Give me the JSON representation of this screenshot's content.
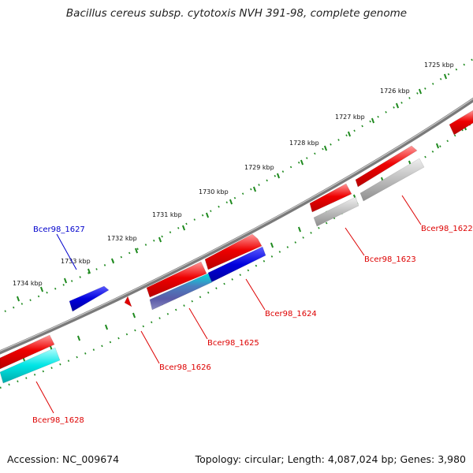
{
  "title": "Bacillus cereus subsp. cytotoxis NVH 391-98, complete genome",
  "footer": {
    "accession": "Accession: NC_009674",
    "info": "Topology: circular; Length: 4,087,024 bp; Genes: 3,980"
  },
  "ticks": [
    "1725 kbp",
    "1726 kbp",
    "1727 kbp",
    "1728 kbp",
    "1729 kbp",
    "1730 kbp",
    "1731 kbp",
    "1732 kbp",
    "1733 kbp",
    "1734 kbp"
  ],
  "genes": [
    {
      "name": "Bcer98_1622",
      "color": "#dd0000"
    },
    {
      "name": "Bcer98_1623",
      "color": "#dd0000"
    },
    {
      "name": "Bcer98_1624",
      "color": "#dd0000"
    },
    {
      "name": "Bcer98_1625",
      "color": "#dd0000"
    },
    {
      "name": "Bcer98_1626",
      "color": "#dd0000"
    },
    {
      "name": "Bcer98_1627",
      "color": "#0000cc"
    },
    {
      "name": "Bcer98_1628",
      "color": "#dd0000"
    }
  ],
  "colors": {
    "backbone": "#7a7a7a",
    "tick": "#1f8a1f",
    "cds": "#ee0000",
    "rna_grey": "#b4b4b4",
    "blue_gene": "#0000dd",
    "cyan_gene": "#00e5e5"
  }
}
